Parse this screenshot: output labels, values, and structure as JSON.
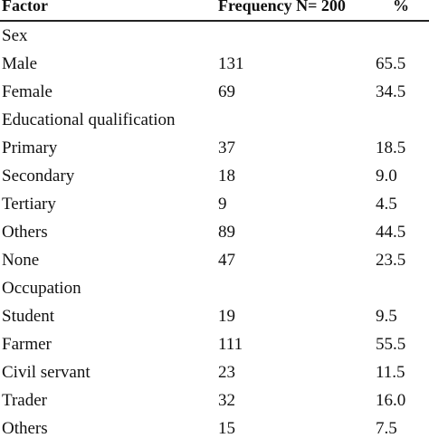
{
  "table": {
    "headers": [
      "Factor",
      "Frequency N= 200",
      "%"
    ],
    "rows": [
      {
        "factor": "Sex",
        "freq": "",
        "pct": ""
      },
      {
        "factor": "Male",
        "freq": "131",
        "pct": "65.5"
      },
      {
        "factor": "Female",
        "freq": "69",
        "pct": "34.5"
      },
      {
        "factor": "Educational qualification",
        "freq": "",
        "pct": ""
      },
      {
        "factor": "Primary",
        "freq": "37",
        "pct": "18.5"
      },
      {
        "factor": "Secondary",
        "freq": "18",
        "pct": "9.0"
      },
      {
        "factor": "Tertiary",
        "freq": "9",
        "pct": "4.5"
      },
      {
        "factor": "Others",
        "freq": "89",
        "pct": "44.5"
      },
      {
        "factor": "None",
        "freq": "47",
        "pct": "23.5"
      },
      {
        "factor": "Occupation",
        "freq": "",
        "pct": ""
      },
      {
        "factor": "Student",
        "freq": "19",
        "pct": "9.5"
      },
      {
        "factor": "Farmer",
        "freq": "111",
        "pct": "55.5"
      },
      {
        "factor": "Civil servant",
        "freq": "23",
        "pct": "11.5"
      },
      {
        "factor": "Trader",
        "freq": "32",
        "pct": "16.0"
      },
      {
        "factor": "Others",
        "freq": "15",
        "pct": "7.5"
      }
    ]
  }
}
